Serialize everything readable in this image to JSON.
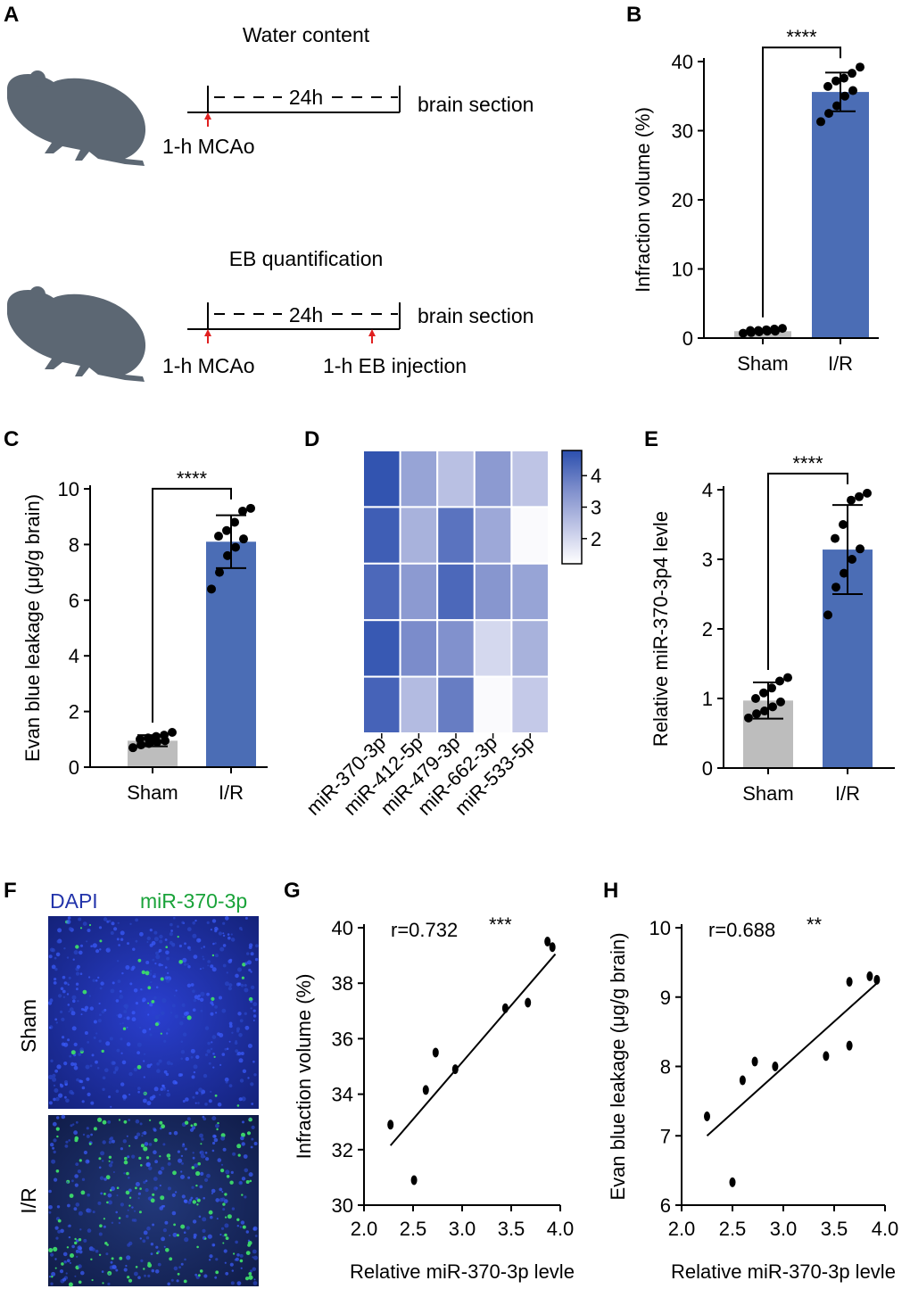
{
  "colors": {
    "sham": "#bdbdbd",
    "ir": "#4b6db5",
    "mouse": "#5c6773",
    "arrow": "#e02020",
    "dapi": "#2233aa",
    "mir": "#1aa33a"
  },
  "panelA": {
    "label": "A",
    "top": {
      "title": "Water content",
      "duration": "24h",
      "end_label": "brain section",
      "start_label": "1-h MCAo"
    },
    "bottom": {
      "title": "EB quantification",
      "duration": "24h",
      "end_label": "brain section",
      "start_label": "1-h MCAo",
      "mid_label": "1-h EB injection"
    }
  },
  "panelF": {
    "label": "F",
    "stain1": "DAPI",
    "stain2": "miR-370-3p",
    "row1": "Sham",
    "row2": "I/R"
  },
  "chart_data": [
    {
      "id": "B",
      "label": "B",
      "type": "bar",
      "categories": [
        "Sham",
        "I/R"
      ],
      "values": [
        1.0,
        35.6
      ],
      "sd": [
        0.2,
        2.8
      ],
      "points": [
        [
          0.7,
          0.8,
          0.9,
          1.0,
          1.0,
          1.1,
          1.1,
          1.2,
          1.3,
          1.4
        ],
        [
          31.3,
          32.5,
          33.6,
          35.0,
          35.8,
          36.4,
          37.2,
          37.6,
          38.3,
          39.2
        ]
      ],
      "ylabel": "Infraction volume (%)",
      "ylim": [
        0,
        40
      ],
      "yticks": [
        0,
        10,
        20,
        30,
        40
      ],
      "significance": "****"
    },
    {
      "id": "C",
      "label": "C",
      "type": "bar",
      "categories": [
        "Sham",
        "I/R"
      ],
      "values": [
        0.95,
        8.1
      ],
      "sd": [
        0.2,
        0.95
      ],
      "points": [
        [
          0.7,
          0.8,
          0.85,
          0.9,
          0.95,
          1.0,
          1.05,
          1.1,
          1.15,
          1.25
        ],
        [
          6.4,
          7.0,
          7.6,
          7.9,
          8.2,
          8.3,
          8.5,
          8.8,
          9.2,
          9.3
        ]
      ],
      "ylabel": "Evan blue leakage (μg/g brain)",
      "ylim": [
        0,
        10
      ],
      "yticks": [
        0,
        2,
        4,
        6,
        8,
        10
      ],
      "significance": "****"
    },
    {
      "id": "D",
      "label": "D",
      "type": "heatmap",
      "columns": [
        "miR-370-3p",
        "miR-412-5p",
        "miR-479-3p",
        "miR-662-3p",
        "miR-533-5p"
      ],
      "values": [
        [
          4.7,
          3.1,
          2.5,
          3.3,
          2.4
        ],
        [
          4.5,
          2.8,
          4.1,
          3.0,
          1.3
        ],
        [
          4.3,
          3.3,
          4.3,
          3.4,
          3.1
        ],
        [
          4.6,
          3.6,
          3.5,
          2.0,
          2.8
        ],
        [
          4.4,
          2.6,
          3.9,
          1.3,
          2.3
        ]
      ],
      "colorbar_range": [
        1.2,
        4.8
      ],
      "colorbar_ticks": [
        2,
        3,
        4
      ]
    },
    {
      "id": "E",
      "label": "E",
      "type": "bar",
      "categories": [
        "Sham",
        "I/R"
      ],
      "values": [
        0.97,
        3.14
      ],
      "sd": [
        0.26,
        0.64
      ],
      "points": [
        [
          0.72,
          0.78,
          0.82,
          0.88,
          0.95,
          1.0,
          1.08,
          1.15,
          1.25,
          1.3
        ],
        [
          2.2,
          2.6,
          2.8,
          3.0,
          3.15,
          3.3,
          3.5,
          3.85,
          3.9,
          3.95
        ]
      ],
      "ylabel": "Relative miR-370-3p4 levle",
      "ylim": [
        0,
        4
      ],
      "yticks": [
        0,
        1,
        2,
        3,
        4
      ],
      "significance": "****"
    },
    {
      "id": "G",
      "label": "G",
      "type": "scatter",
      "points": [
        [
          2.27,
          32.9
        ],
        [
          2.51,
          30.9
        ],
        [
          2.63,
          34.15
        ],
        [
          2.73,
          35.5
        ],
        [
          2.93,
          34.9
        ],
        [
          3.44,
          37.1
        ],
        [
          3.67,
          37.3
        ],
        [
          3.87,
          39.5
        ],
        [
          3.92,
          39.3
        ]
      ],
      "fit": [
        [
          2.27,
          32.15
        ],
        [
          3.95,
          39.05
        ]
      ],
      "xlabel": "Relative miR-370-3p levle",
      "ylabel": "Infraction volume (%)",
      "xlim": [
        2.0,
        4.0
      ],
      "ylim": [
        30,
        40
      ],
      "xticks": [
        "2.0",
        "2.5",
        "3.0",
        "3.5",
        "4.0"
      ],
      "yticks": [
        30,
        32,
        34,
        36,
        38,
        40
      ],
      "r_text": "r=0.732",
      "significance": "***"
    },
    {
      "id": "H",
      "label": "H",
      "type": "scatter",
      "points": [
        [
          2.25,
          7.28
        ],
        [
          2.5,
          6.33
        ],
        [
          2.6,
          7.8
        ],
        [
          2.72,
          8.07
        ],
        [
          2.92,
          8.0
        ],
        [
          3.42,
          8.15
        ],
        [
          3.65,
          8.3
        ],
        [
          3.65,
          9.22
        ],
        [
          3.85,
          9.3
        ],
        [
          3.92,
          9.25
        ]
      ],
      "fit": [
        [
          2.25,
          7.0
        ],
        [
          3.92,
          9.2
        ]
      ],
      "xlabel": "Relative miR-370-3p levle",
      "ylabel": "Evan blue leakage (μg/g brain)",
      "xlim": [
        2.0,
        4.0
      ],
      "ylim": [
        6,
        10
      ],
      "xticks": [
        "2.0",
        "2.5",
        "3.0",
        "3.5",
        "4.0"
      ],
      "yticks": [
        6,
        7,
        8,
        9,
        10
      ],
      "r_text": "r=0.688",
      "significance": "**"
    }
  ]
}
